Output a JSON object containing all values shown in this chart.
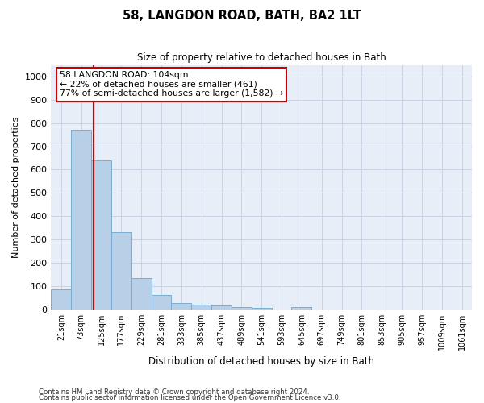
{
  "title": "58, LANGDON ROAD, BATH, BA2 1LT",
  "subtitle": "Size of property relative to detached houses in Bath",
  "xlabel": "Distribution of detached houses by size in Bath",
  "ylabel": "Number of detached properties",
  "bins": [
    "21sqm",
    "73sqm",
    "125sqm",
    "177sqm",
    "229sqm",
    "281sqm",
    "333sqm",
    "385sqm",
    "437sqm",
    "489sqm",
    "541sqm",
    "593sqm",
    "645sqm",
    "697sqm",
    "749sqm",
    "801sqm",
    "853sqm",
    "905sqm",
    "957sqm",
    "1009sqm",
    "1061sqm"
  ],
  "bar_heights": [
    85,
    770,
    640,
    330,
    135,
    62,
    25,
    20,
    15,
    9,
    6,
    0,
    10,
    0,
    0,
    0,
    0,
    0,
    0,
    0,
    0
  ],
  "bar_color": "#b8cfe8",
  "bar_edge_color": "#7aadd4",
  "grid_color": "#c8d4e4",
  "background_color": "#e8eef8",
  "vline_x": 1.6,
  "vline_color": "#cc0000",
  "annotation_text": "58 LANGDON ROAD: 104sqm\n← 22% of detached houses are smaller (461)\n77% of semi-detached houses are larger (1,582) →",
  "annotation_box_color": "#ffffff",
  "annotation_box_edge": "#cc0000",
  "ylim": [
    0,
    1050
  ],
  "yticks": [
    0,
    100,
    200,
    300,
    400,
    500,
    600,
    700,
    800,
    900,
    1000
  ],
  "footer1": "Contains HM Land Registry data © Crown copyright and database right 2024.",
  "footer2": "Contains public sector information licensed under the Open Government Licence v3.0."
}
